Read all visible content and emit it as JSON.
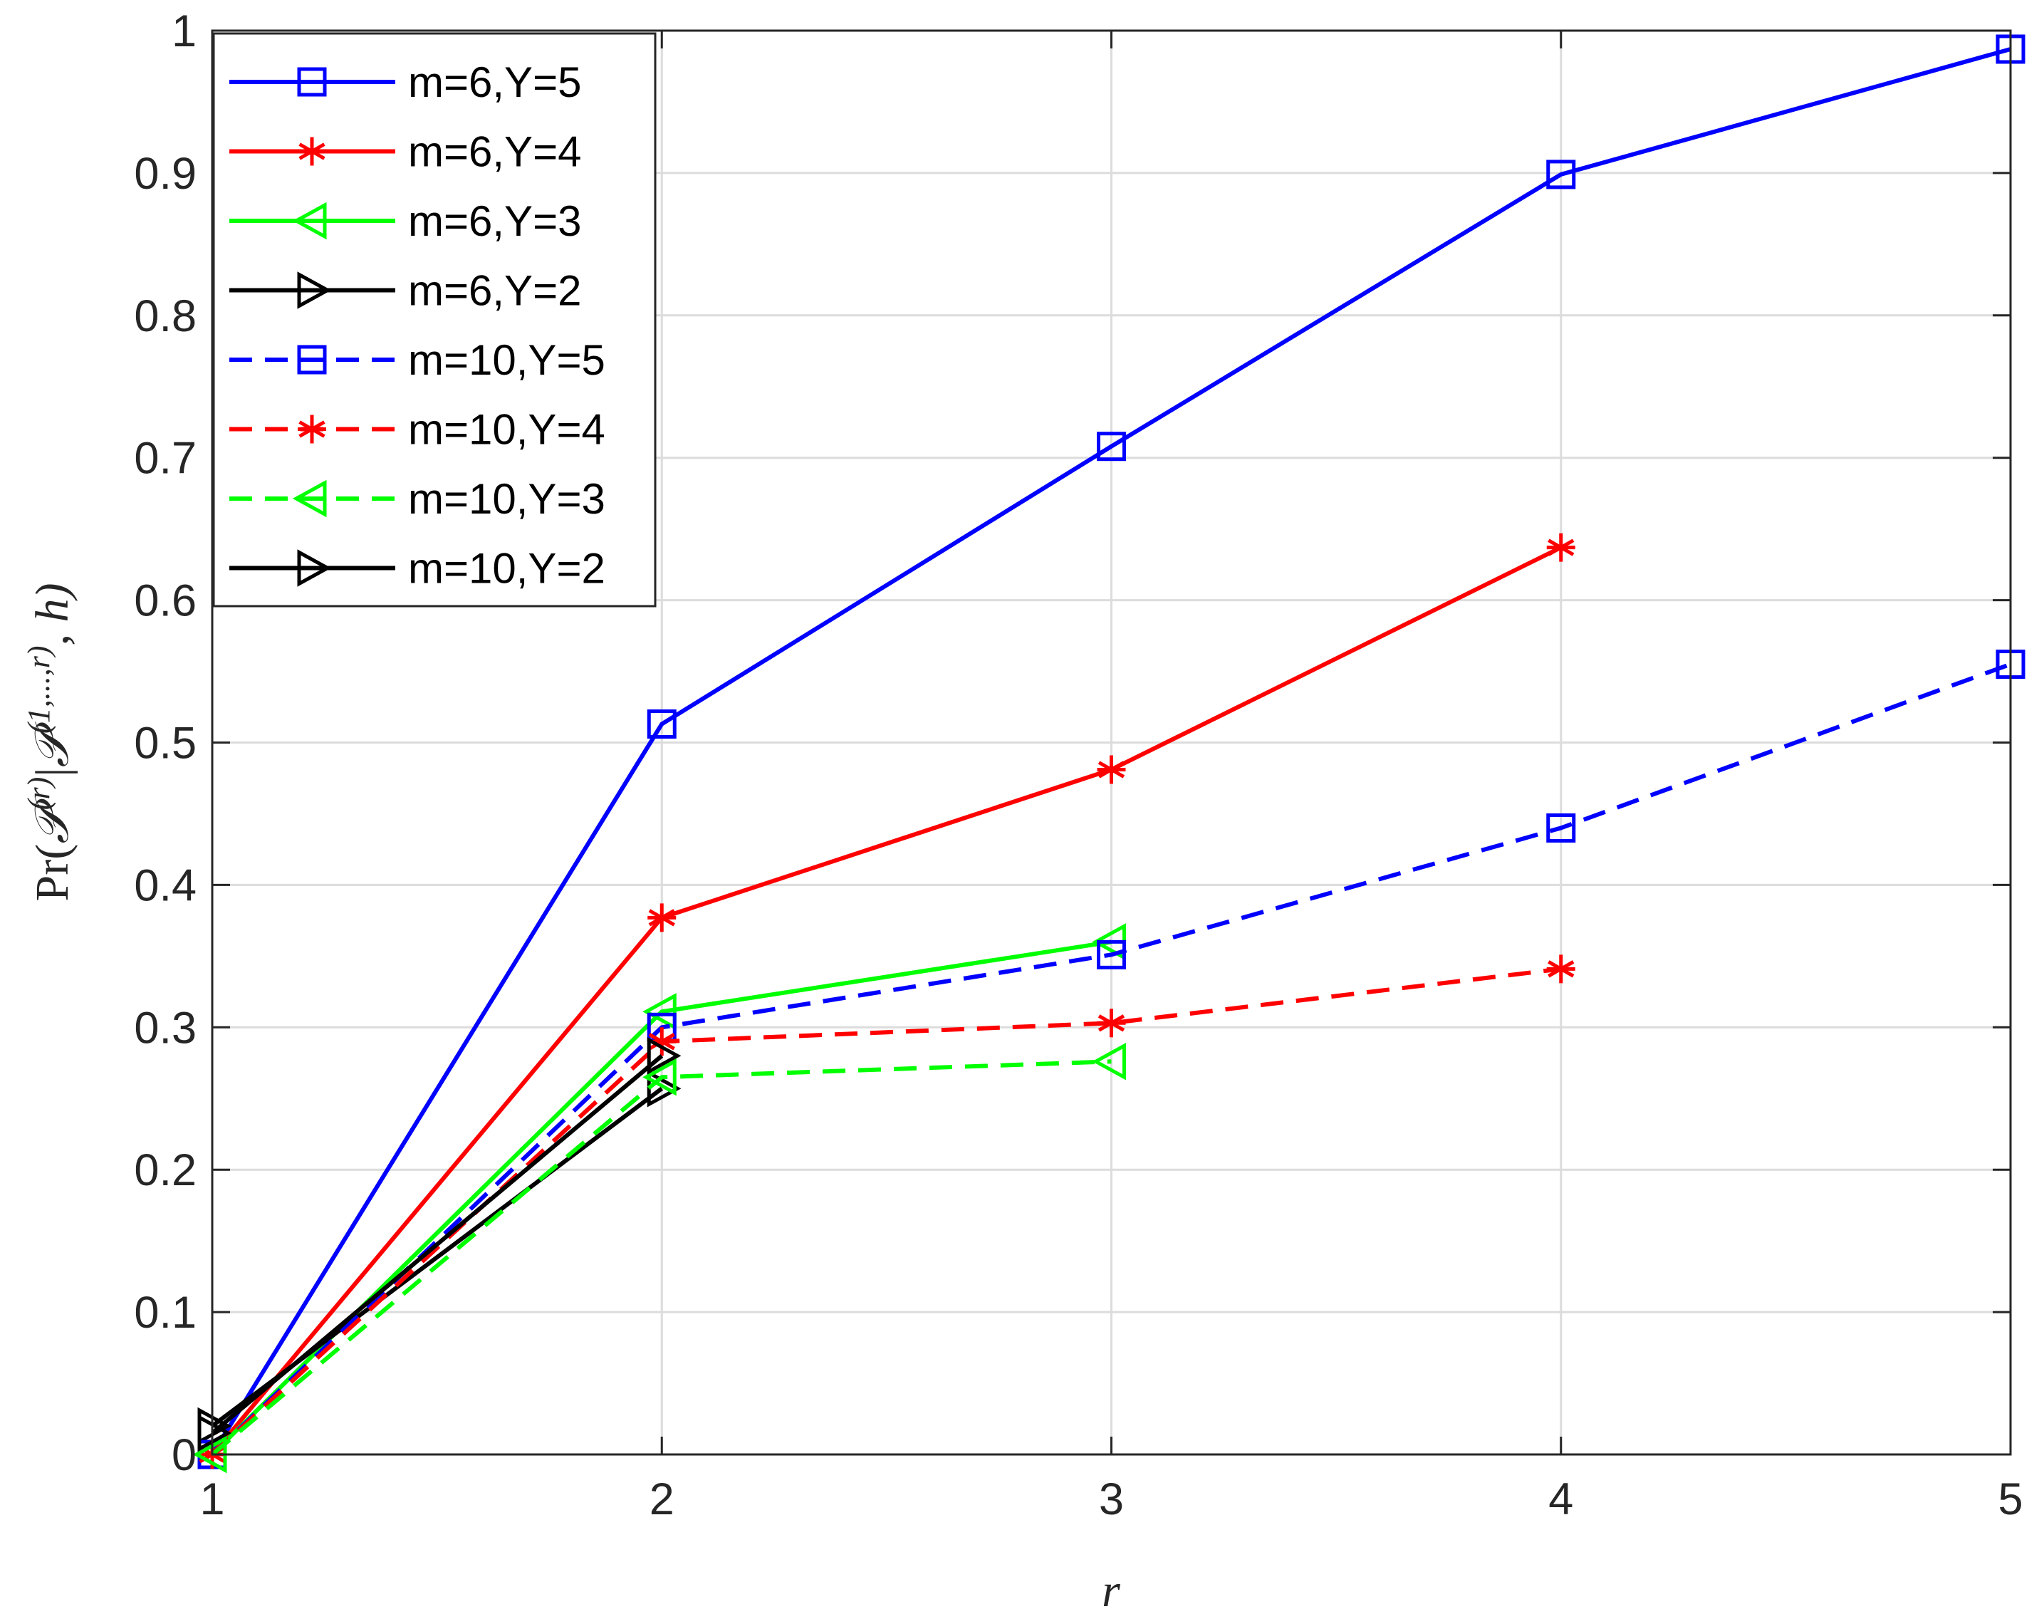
{
  "chart_data": {
    "type": "line",
    "xlabel": "r",
    "ylabel_parts": [
      "Pr",
      "(",
      "𝒫",
      "(r)",
      "|",
      "𝒫",
      "(1,...,r)",
      ", h)"
    ],
    "xlim": [
      1,
      5
    ],
    "ylim": [
      0,
      1
    ],
    "x_ticks": [
      "1",
      "2",
      "3",
      "4",
      "5"
    ],
    "y_ticks": [
      "0",
      "0.1",
      "0.2",
      "0.3",
      "0.4",
      "0.5",
      "0.6",
      "0.7",
      "0.8",
      "0.9",
      "1"
    ],
    "grid": true,
    "legend_position": "top-left",
    "series": [
      {
        "name": "m=6,Y=5",
        "color": "#0000ff",
        "dash": "solid",
        "marker": "square",
        "x": [
          1,
          2,
          3,
          4,
          5
        ],
        "y": [
          0.0,
          0.513,
          0.708,
          0.899,
          0.987
        ]
      },
      {
        "name": "m=6,Y=4",
        "color": "#ff0000",
        "dash": "solid",
        "marker": "asterisk",
        "x": [
          1,
          2,
          3,
          4
        ],
        "y": [
          0.0,
          0.377,
          0.481,
          0.637
        ]
      },
      {
        "name": "m=6,Y=3",
        "color": "#00ff00",
        "dash": "solid",
        "marker": "triangle-left",
        "x": [
          1,
          2,
          3
        ],
        "y": [
          0.0,
          0.311,
          0.36
        ]
      },
      {
        "name": "m=6,Y=2",
        "color": "#000000",
        "dash": "solid",
        "marker": "triangle-right",
        "x": [
          1,
          2
        ],
        "y": [
          0.02,
          0.257
        ]
      },
      {
        "name": "m=10,Y=5",
        "color": "#0000ff",
        "dash": "dashed",
        "marker": "square",
        "x": [
          1,
          2,
          3,
          4,
          5
        ],
        "y": [
          0.0,
          0.3,
          0.351,
          0.44,
          0.555
        ]
      },
      {
        "name": "m=10,Y=4",
        "color": "#ff0000",
        "dash": "dashed",
        "marker": "asterisk",
        "x": [
          1,
          2,
          3,
          4
        ],
        "y": [
          0.0,
          0.29,
          0.303,
          0.341
        ]
      },
      {
        "name": "m=10,Y=3",
        "color": "#00ff00",
        "dash": "dashed",
        "marker": "triangle-left",
        "x": [
          1,
          2,
          3
        ],
        "y": [
          0.0,
          0.265,
          0.276
        ]
      },
      {
        "name": "m=10,Y=2",
        "color": "#000000",
        "dash": "solid",
        "marker": "triangle-right",
        "x": [
          1,
          2
        ],
        "y": [
          0.015,
          0.28
        ]
      }
    ]
  }
}
